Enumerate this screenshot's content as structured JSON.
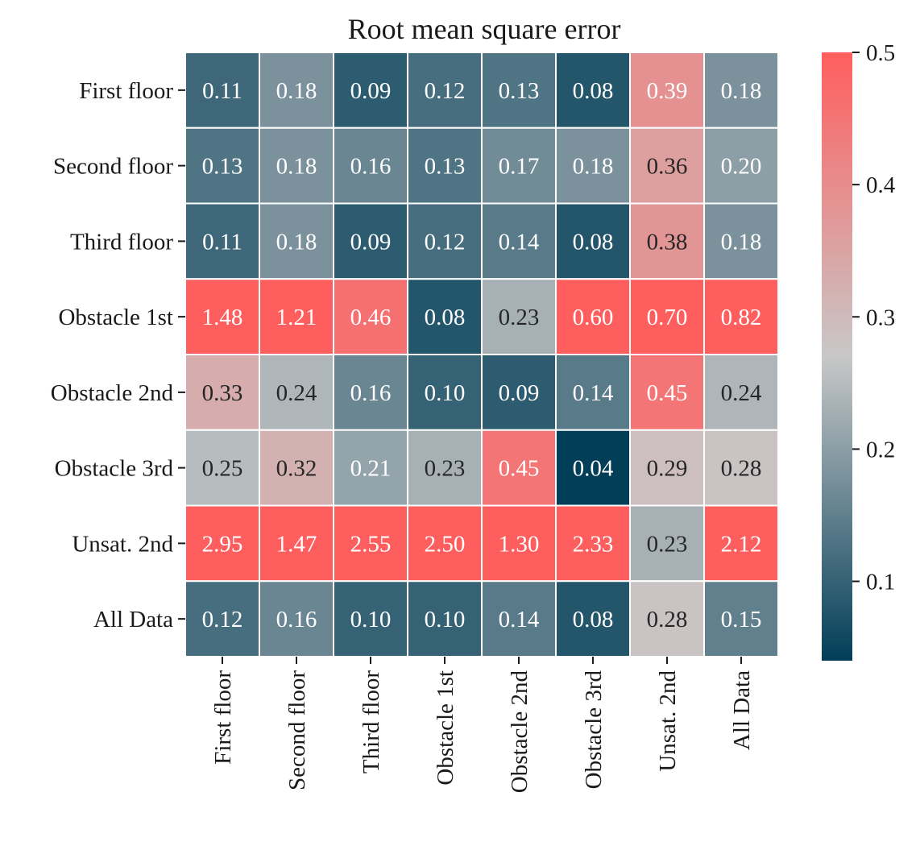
{
  "chart_data": {
    "type": "heatmap",
    "title": "Root mean square error",
    "row_labels": [
      "First floor",
      "Second floor",
      "Third floor",
      "Obstacle 1st",
      "Obstacle 2nd",
      "Obstacle 3rd",
      "Unsat. 2nd",
      "All Data"
    ],
    "col_labels": [
      "First floor",
      "Second floor",
      "Third floor",
      "Obstacle 1st",
      "Obstacle 2nd",
      "Obstacle 3rd",
      "Unsat. 2nd",
      "All Data"
    ],
    "values": [
      [
        0.11,
        0.18,
        0.09,
        0.12,
        0.13,
        0.08,
        0.39,
        0.18
      ],
      [
        0.13,
        0.18,
        0.16,
        0.13,
        0.17,
        0.18,
        0.36,
        0.2
      ],
      [
        0.11,
        0.18,
        0.09,
        0.12,
        0.14,
        0.08,
        0.38,
        0.18
      ],
      [
        1.48,
        1.21,
        0.46,
        0.08,
        0.23,
        0.6,
        0.7,
        0.82
      ],
      [
        0.33,
        0.24,
        0.16,
        0.1,
        0.09,
        0.14,
        0.45,
        0.24
      ],
      [
        0.25,
        0.32,
        0.21,
        0.23,
        0.45,
        0.04,
        0.29,
        0.28
      ],
      [
        2.95,
        1.47,
        2.55,
        2.5,
        1.3,
        2.33,
        0.23,
        2.12
      ],
      [
        0.12,
        0.16,
        0.1,
        0.1,
        0.14,
        0.08,
        0.28,
        0.15
      ]
    ],
    "value_labels": [
      [
        "0.11",
        "0.18",
        "0.09",
        "0.12",
        "0.13",
        "0.08",
        "0.39",
        "0.18"
      ],
      [
        "0.13",
        "0.18",
        "0.16",
        "0.13",
        "0.17",
        "0.18",
        "0.36",
        "0.20"
      ],
      [
        "0.11",
        "0.18",
        "0.09",
        "0.12",
        "0.14",
        "0.08",
        "0.38",
        "0.18"
      ],
      [
        "1.48",
        "1.21",
        "0.46",
        "0.08",
        "0.23",
        "0.60",
        "0.70",
        "0.82"
      ],
      [
        "0.33",
        "0.24",
        "0.16",
        "0.10",
        "0.09",
        "0.14",
        "0.45",
        "0.24"
      ],
      [
        "0.25",
        "0.32",
        "0.21",
        "0.23",
        "0.45",
        "0.04",
        "0.29",
        "0.28"
      ],
      [
        "2.95",
        "1.47",
        "2.55",
        "2.50",
        "1.30",
        "2.33",
        "0.23",
        "2.12"
      ],
      [
        "0.12",
        "0.16",
        "0.10",
        "0.10",
        "0.14",
        "0.08",
        "0.28",
        "0.15"
      ]
    ],
    "color_range": [
      0.04,
      0.5
    ],
    "colorbar": {
      "ticks": [
        0.1,
        0.2,
        0.3,
        0.4,
        0.5
      ],
      "tick_labels": [
        "0.1",
        "0.2",
        "0.3",
        "0.4",
        "0.5"
      ]
    },
    "colors": {
      "low": "#023e58",
      "mid": "#c8c8c8",
      "high": "#ff5e5e",
      "cell_border": "#ffffff",
      "text_dark": "#262626",
      "text_light": "#ffffff"
    },
    "grid": false
  }
}
